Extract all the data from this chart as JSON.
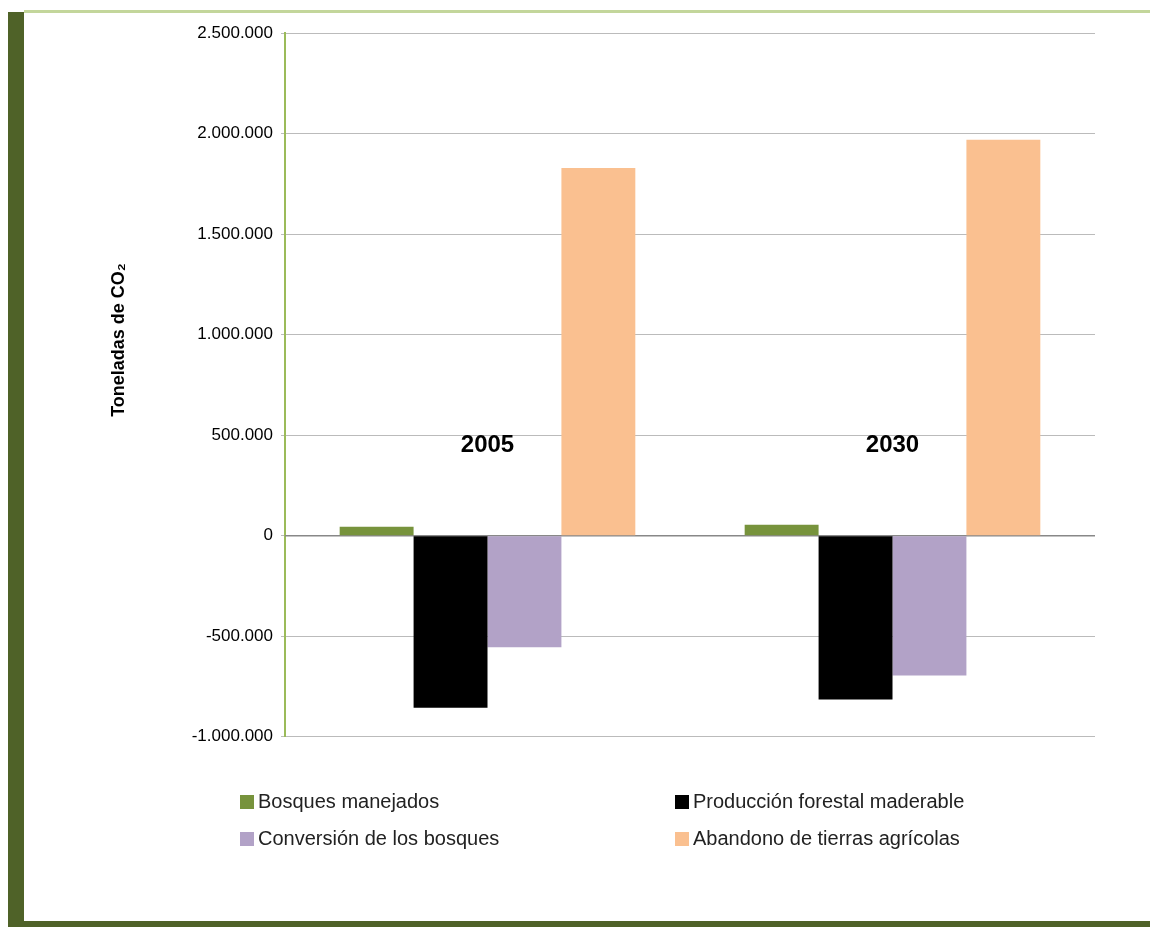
{
  "chart_data": {
    "type": "bar",
    "ylabel": "Toneladas de CO₂",
    "categories": [
      "2005",
      "2030"
    ],
    "series": [
      {
        "name": "Bosques manejados",
        "color": "#77933c",
        "values": [
          45000,
          55000
        ]
      },
      {
        "name": "Producción forestal maderable",
        "color": "#000000",
        "values": [
          -855000,
          -815000
        ]
      },
      {
        "name": "Conversión de los bosques",
        "color": "#b2a2c7",
        "values": [
          -555000,
          -695000
        ]
      },
      {
        "name": "Abandono de tierras agrícolas",
        "color": "#fac090",
        "values": [
          1830000,
          1970000
        ]
      }
    ],
    "ylim": [
      -1000000,
      2500000
    ],
    "yticks": [
      {
        "value": -1000000,
        "label": "-1.000.000"
      },
      {
        "value": -500000,
        "label": "-500.000"
      },
      0,
      {
        "value": 500000,
        "label": "500.000"
      },
      {
        "value": 1000000,
        "label": "1.000.000"
      },
      {
        "value": 1500000,
        "label": "1.500.000"
      },
      {
        "value": 2000000,
        "label": "2.000.000"
      },
      {
        "value": 2500000,
        "label": "2.500.000"
      }
    ],
    "grid": "y",
    "legend": "bottom"
  }
}
